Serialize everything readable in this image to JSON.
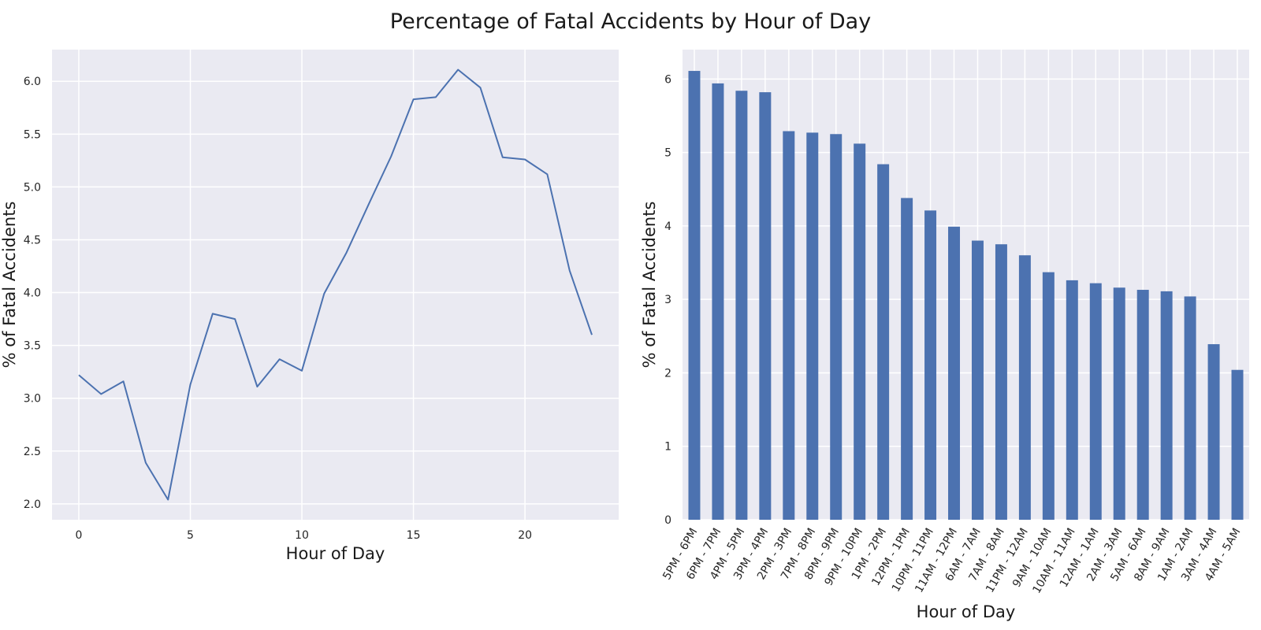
{
  "figure": {
    "title": "Percentage of Fatal Accidents by Hour of Day",
    "colors": {
      "plot_background": "#EAEAF2",
      "grid": "#FFFFFF",
      "line": "#4C72B0",
      "bar": "#4C72B0"
    }
  },
  "chart_data": [
    {
      "type": "line",
      "xlabel": "Hour of Day",
      "ylabel": "% of Fatal Accidents",
      "xlim": [
        -1.2,
        24.2
      ],
      "ylim": [
        1.85,
        6.3
      ],
      "xticks": [
        0,
        5,
        10,
        15,
        20
      ],
      "xtick_labels": [
        "0",
        "5",
        "10",
        "15",
        "20"
      ],
      "yticks": [
        2.0,
        2.5,
        3.0,
        3.5,
        4.0,
        4.5,
        5.0,
        5.5,
        6.0
      ],
      "ytick_labels": [
        "2.0",
        "2.5",
        "3.0",
        "3.5",
        "4.0",
        "4.5",
        "5.0",
        "5.5",
        "6.0"
      ],
      "grid": true,
      "series": [
        {
          "x": [
            0,
            1,
            2,
            3,
            4,
            5,
            6,
            7,
            8,
            9,
            10,
            11,
            12,
            13,
            14,
            15,
            16,
            17,
            18,
            19,
            20,
            21,
            22,
            23
          ],
          "values": [
            3.22,
            3.04,
            3.16,
            2.39,
            2.04,
            3.13,
            3.8,
            3.75,
            3.11,
            3.37,
            3.26,
            3.99,
            4.38,
            4.84,
            5.29,
            5.83,
            5.85,
            6.11,
            5.94,
            5.28,
            5.26,
            5.12,
            4.21,
            3.6
          ]
        }
      ]
    },
    {
      "type": "bar",
      "xlabel": "Hour of Day",
      "ylabel": "% of Fatal Accidents",
      "ylim": [
        0,
        6.4
      ],
      "yticks": [
        0,
        1,
        2,
        3,
        4,
        5,
        6
      ],
      "ytick_labels": [
        "0",
        "1",
        "2",
        "3",
        "4",
        "5",
        "6"
      ],
      "grid": true,
      "categories": [
        "5PM - 6PM",
        "6PM - 7PM",
        "4PM - 5PM",
        "3PM - 4PM",
        "2PM - 3PM",
        "7PM - 8PM",
        "8PM - 9PM",
        "9PM - 10PM",
        "1PM - 2PM",
        "12PM - 1PM",
        "10PM - 11PM",
        "11AM - 12PM",
        "6AM - 7AM",
        "7AM - 8AM",
        "11PM - 12AM",
        "9AM - 10AM",
        "10AM - 11AM",
        "12AM - 1AM",
        "2AM - 3AM",
        "5AM - 6AM",
        "8AM - 9AM",
        "1AM - 2AM",
        "3AM - 4AM",
        "4AM - 5AM"
      ],
      "values": [
        6.11,
        5.94,
        5.84,
        5.82,
        5.29,
        5.27,
        5.25,
        5.12,
        4.84,
        4.38,
        4.21,
        3.99,
        3.8,
        3.75,
        3.6,
        3.37,
        3.26,
        3.22,
        3.16,
        3.13,
        3.11,
        3.04,
        2.39,
        2.04
      ]
    }
  ]
}
